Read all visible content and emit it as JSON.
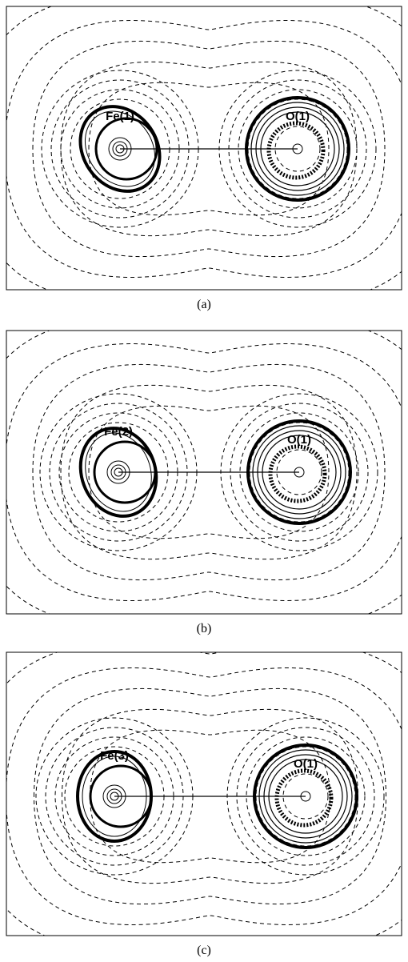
{
  "panels": [
    {
      "atoms": [
        "Fe(1)",
        "O(1)"
      ],
      "caption": "(a)"
    },
    {
      "atoms": [
        "Fe(2)",
        "O(1)"
      ],
      "caption": "(b)"
    },
    {
      "atoms": [
        "Fe(3)",
        "O(1)"
      ],
      "caption": "(c)"
    }
  ]
}
